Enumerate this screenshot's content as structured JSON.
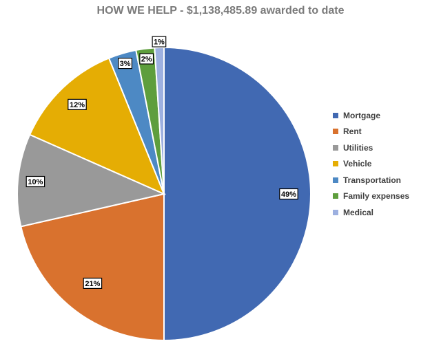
{
  "chart_data": {
    "type": "pie",
    "title": "HOW WE HELP - $1,138,485.89 awarded to date",
    "legend_position": "right",
    "slices": [
      {
        "name": "Mortgage",
        "value": 49,
        "label": "49%",
        "color": "#4169b2"
      },
      {
        "name": "Rent",
        "value": 21,
        "label": "21%",
        "color": "#d9722e"
      },
      {
        "name": "Utilities",
        "value": 10,
        "label": "10%",
        "color": "#999999"
      },
      {
        "name": "Vehicle",
        "value": 12,
        "label": "12%",
        "color": "#e5ad04"
      },
      {
        "name": "Transportation",
        "value": 3,
        "label": "3%",
        "color": "#4d89c4"
      },
      {
        "name": "Family expenses",
        "value": 2,
        "label": "2%",
        "color": "#5e9e3d"
      },
      {
        "name": "Medical",
        "value": 1,
        "label": "1%",
        "color": "#9db0e0"
      }
    ]
  }
}
